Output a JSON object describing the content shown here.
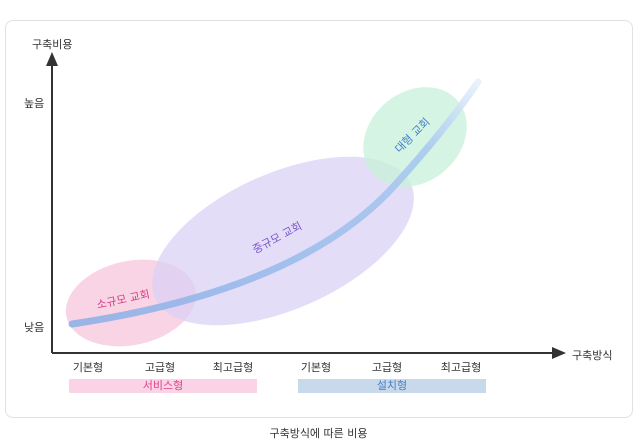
{
  "diagram": {
    "y_axis_title": "구축비용",
    "x_axis_title": "구축방식",
    "y_levels": {
      "high": "높음",
      "low": "낮음"
    },
    "x_ticks": [
      "기본형",
      "고급형",
      "최고급형",
      "기본형",
      "고급형",
      "최고급형"
    ],
    "groups": [
      {
        "label": "서비스형",
        "color": "#fad4e6",
        "text_color": "#e0418c"
      },
      {
        "label": "설치형",
        "color": "#c9d9ec",
        "text_color": "#4a7fc1"
      }
    ],
    "regions": [
      {
        "label": "소규모 교회",
        "fill": "#f7c6dc",
        "text_color": "#d63b86"
      },
      {
        "label": "중규모 교회",
        "fill": "#d9d0f5",
        "text_color": "#7a55c9"
      },
      {
        "label": "대형 교회",
        "fill": "#c8f0da",
        "text_color": "#3f7fd0"
      }
    ],
    "curve_color": "#9cbbea",
    "caption": "구축방식에 따른 비용"
  }
}
